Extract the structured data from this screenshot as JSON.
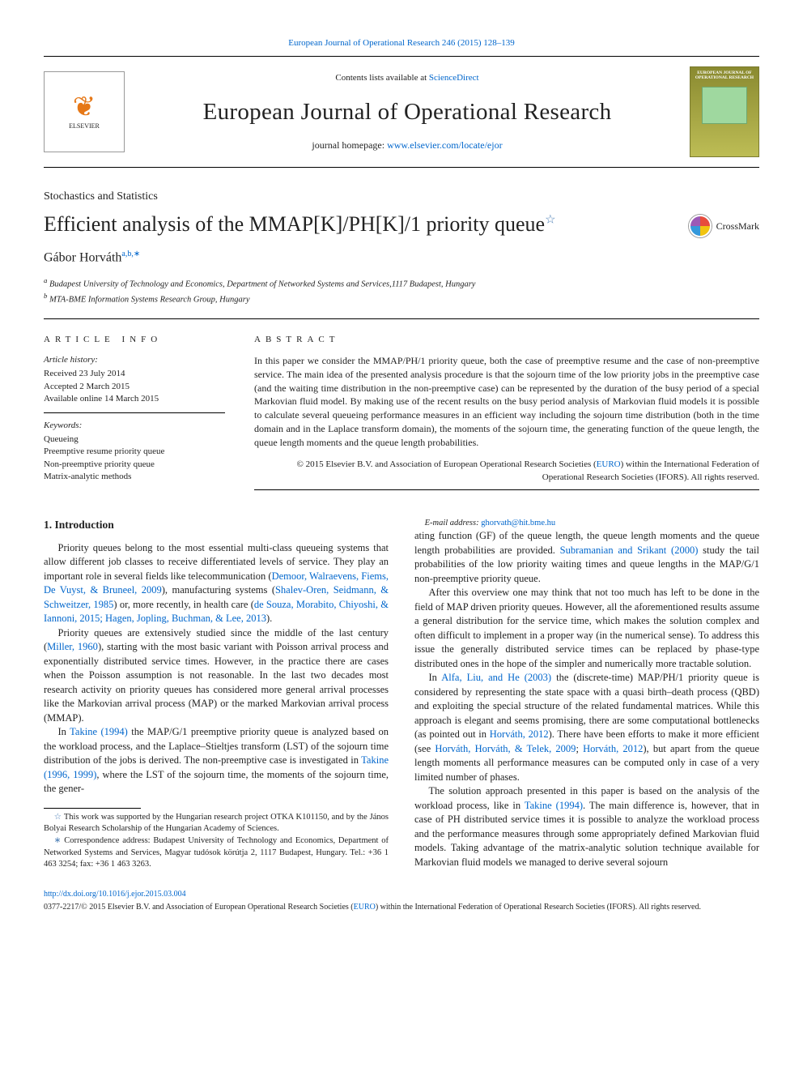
{
  "top_link": {
    "journal": "European Journal of Operational Research",
    "issue": "246 (2015) 128–139"
  },
  "header": {
    "contents_prefix": "Contents lists available at ",
    "contents_link": "ScienceDirect",
    "journal_name": "European Journal of Operational Research",
    "homepage_prefix": "journal homepage: ",
    "homepage_link": "www.elsevier.com/locate/ejor",
    "publisher_logo": "ELSEVIER",
    "cover_title": "EUROPEAN JOURNAL OF OPERATIONAL RESEARCH"
  },
  "section_label": "Stochastics and Statistics",
  "title": "Efficient analysis of the MMAP[K]/PH[K]/1 priority queue",
  "title_star": "☆",
  "crossmark_label": "CrossMark",
  "author": {
    "name": "Gábor Horváth",
    "marks": "a,b,∗"
  },
  "affiliations": {
    "a": "Budapest University of Technology and Economics, Department of Networked Systems and Services,1117 Budapest, Hungary",
    "b": "MTA-BME Information Systems Research Group, Hungary"
  },
  "info": {
    "heading": "article info",
    "history_label": "Article history:",
    "received": "Received 23 July 2014",
    "accepted": "Accepted 2 March 2015",
    "online": "Available online 14 March 2015",
    "keywords_label": "Keywords:",
    "keywords": [
      "Queueing",
      "Preemptive resume priority queue",
      "Non-preemptive priority queue",
      "Matrix-analytic methods"
    ]
  },
  "abstract": {
    "heading": "abstract",
    "text": "In this paper we consider the MMAP/PH/1 priority queue, both the case of preemptive resume and the case of non-preemptive service. The main idea of the presented analysis procedure is that the sojourn time of the low priority jobs in the preemptive case (and the waiting time distribution in the non-preemptive case) can be represented by the duration of the busy period of a special Markovian fluid model. By making use of the recent results on the busy period analysis of Markovian fluid models it is possible to calculate several queueing performance measures in an efficient way including the sojourn time distribution (both in the time domain and in the Laplace transform domain), the moments of the sojourn time, the generating function of the queue length, the queue length moments and the queue length probabilities.",
    "copyright_prefix": "© 2015 Elsevier B.V. and Association of European Operational Research Societies (",
    "copyright_link": "EURO",
    "copyright_suffix": ") within the International Federation of Operational Research Societies (IFORS). All rights reserved."
  },
  "body": {
    "intro_heading": "1. Introduction",
    "p1a": "Priority queues belong to the most essential multi-class queueing systems that allow different job classes to receive differentiated levels of service. They play an important role in several fields like telecommunication (",
    "p1_link1": "Demoor, Walraevens, Fiems, De Vuyst, & Bruneel, 2009",
    "p1b": "), manufacturing systems (",
    "p1_link2": "Shalev-Oren, Seidmann, & Schweitzer, 1985",
    "p1c": ") or, more recently, in health care (",
    "p1_link3": "de Souza, Morabito, Chiyoshi, & Iannoni, 2015; Hagen, Jopling, Buchman, & Lee, 2013",
    "p1d": ").",
    "p2a": "Priority queues are extensively studied since the middle of the last century (",
    "p2_link1": "Miller, 1960",
    "p2b": "), starting with the most basic variant with Poisson arrival process and exponentially distributed service times. However, in the practice there are cases when the Poisson assumption is not reasonable. In the last two decades most research activity on priority queues has considered more general arrival processes like the Markovian arrival process (MAP) or the marked Markovian arrival process (MMAP).",
    "p3a": "In ",
    "p3_link1": "Takine (1994)",
    "p3b": " the MAP/G/1 preemptive priority queue is analyzed based on the workload process, and the Laplace–Stieltjes transform (LST) of the sojourn time distribution of the jobs is derived. The non-preemptive case is investigated in ",
    "p3_link2": "Takine (1996, 1999)",
    "p3c": ", where the LST of the sojourn time, the moments of the sojourn time, the gener-",
    "p3cont": "ating function (GF) of the queue length, the queue length moments and the queue length probabilities are provided. ",
    "p3_link3": "Subramanian and Srikant (2000)",
    "p3d": " study the tail probabilities of the low priority waiting times and queue lengths in the MAP/G/1 non-preemptive priority queue.",
    "p4": "After this overview one may think that not too much has left to be done in the field of MAP driven priority queues. However, all the aforementioned results assume a general distribution for the service time, which makes the solution complex and often difficult to implement in a proper way (in the numerical sense). To address this issue the generally distributed service times can be replaced by phase-type distributed ones in the hope of the simpler and numerically more tractable solution.",
    "p5a": "In ",
    "p5_link1": "Alfa, Liu, and He (2003)",
    "p5b": " the (discrete-time) MAP/PH/1 priority queue is considered by representing the state space with a quasi birth–death process (QBD) and exploiting the special structure of the related fundamental matrices. While this approach is elegant and seems promising, there are some computational bottlenecks (as pointed out in ",
    "p5_link2": "Horváth, 2012",
    "p5c": "). There have been efforts to make it more efficient (see ",
    "p5_link3": "Horváth, Horváth, & Telek, 2009",
    "p5d": "; ",
    "p5_link4": "Horváth, 2012",
    "p5e": "), but apart from the queue length moments all performance measures can be computed only in case of a very limited number of phases.",
    "p6a": "The solution approach presented in this paper is based on the analysis of the workload process, like in ",
    "p6_link1": "Takine (1994)",
    "p6b": ". The main difference is, however, that in case of PH distributed service times it is possible to analyze the workload process and the performance measures through some appropriately defined Markovian fluid models. Taking advantage of the matrix-analytic solution technique available for Markovian fluid models we managed to derive several sojourn"
  },
  "footnotes": {
    "star": "This work was supported by the Hungarian research project OTKA K101150, and by the János Bolyai Research Scholarship of the Hungarian Academy of Sciences.",
    "corr": "Correspondence address: Budapest University of Technology and Economics, Department of Networked Systems and Services, Magyar tudósok körútja 2, 1117 Budapest, Hungary. Tel.: +36 1 463 3254; fax: +36 1 463 3263.",
    "email_label": "E-mail address: ",
    "email": "ghorvath@hit.bme.hu"
  },
  "footer": {
    "doi": "http://dx.doi.org/10.1016/j.ejor.2015.03.004",
    "issn_a": "0377-2217/© 2015 Elsevier B.V. and Association of European Operational Research Societies (",
    "issn_link": "EURO",
    "issn_b": ") within the International Federation of Operational Research Societies (IFORS). All rights reserved."
  },
  "colors": {
    "link": "#0066cc",
    "elsevier_orange": "#e67817",
    "cover_green": "#9fd89f"
  }
}
